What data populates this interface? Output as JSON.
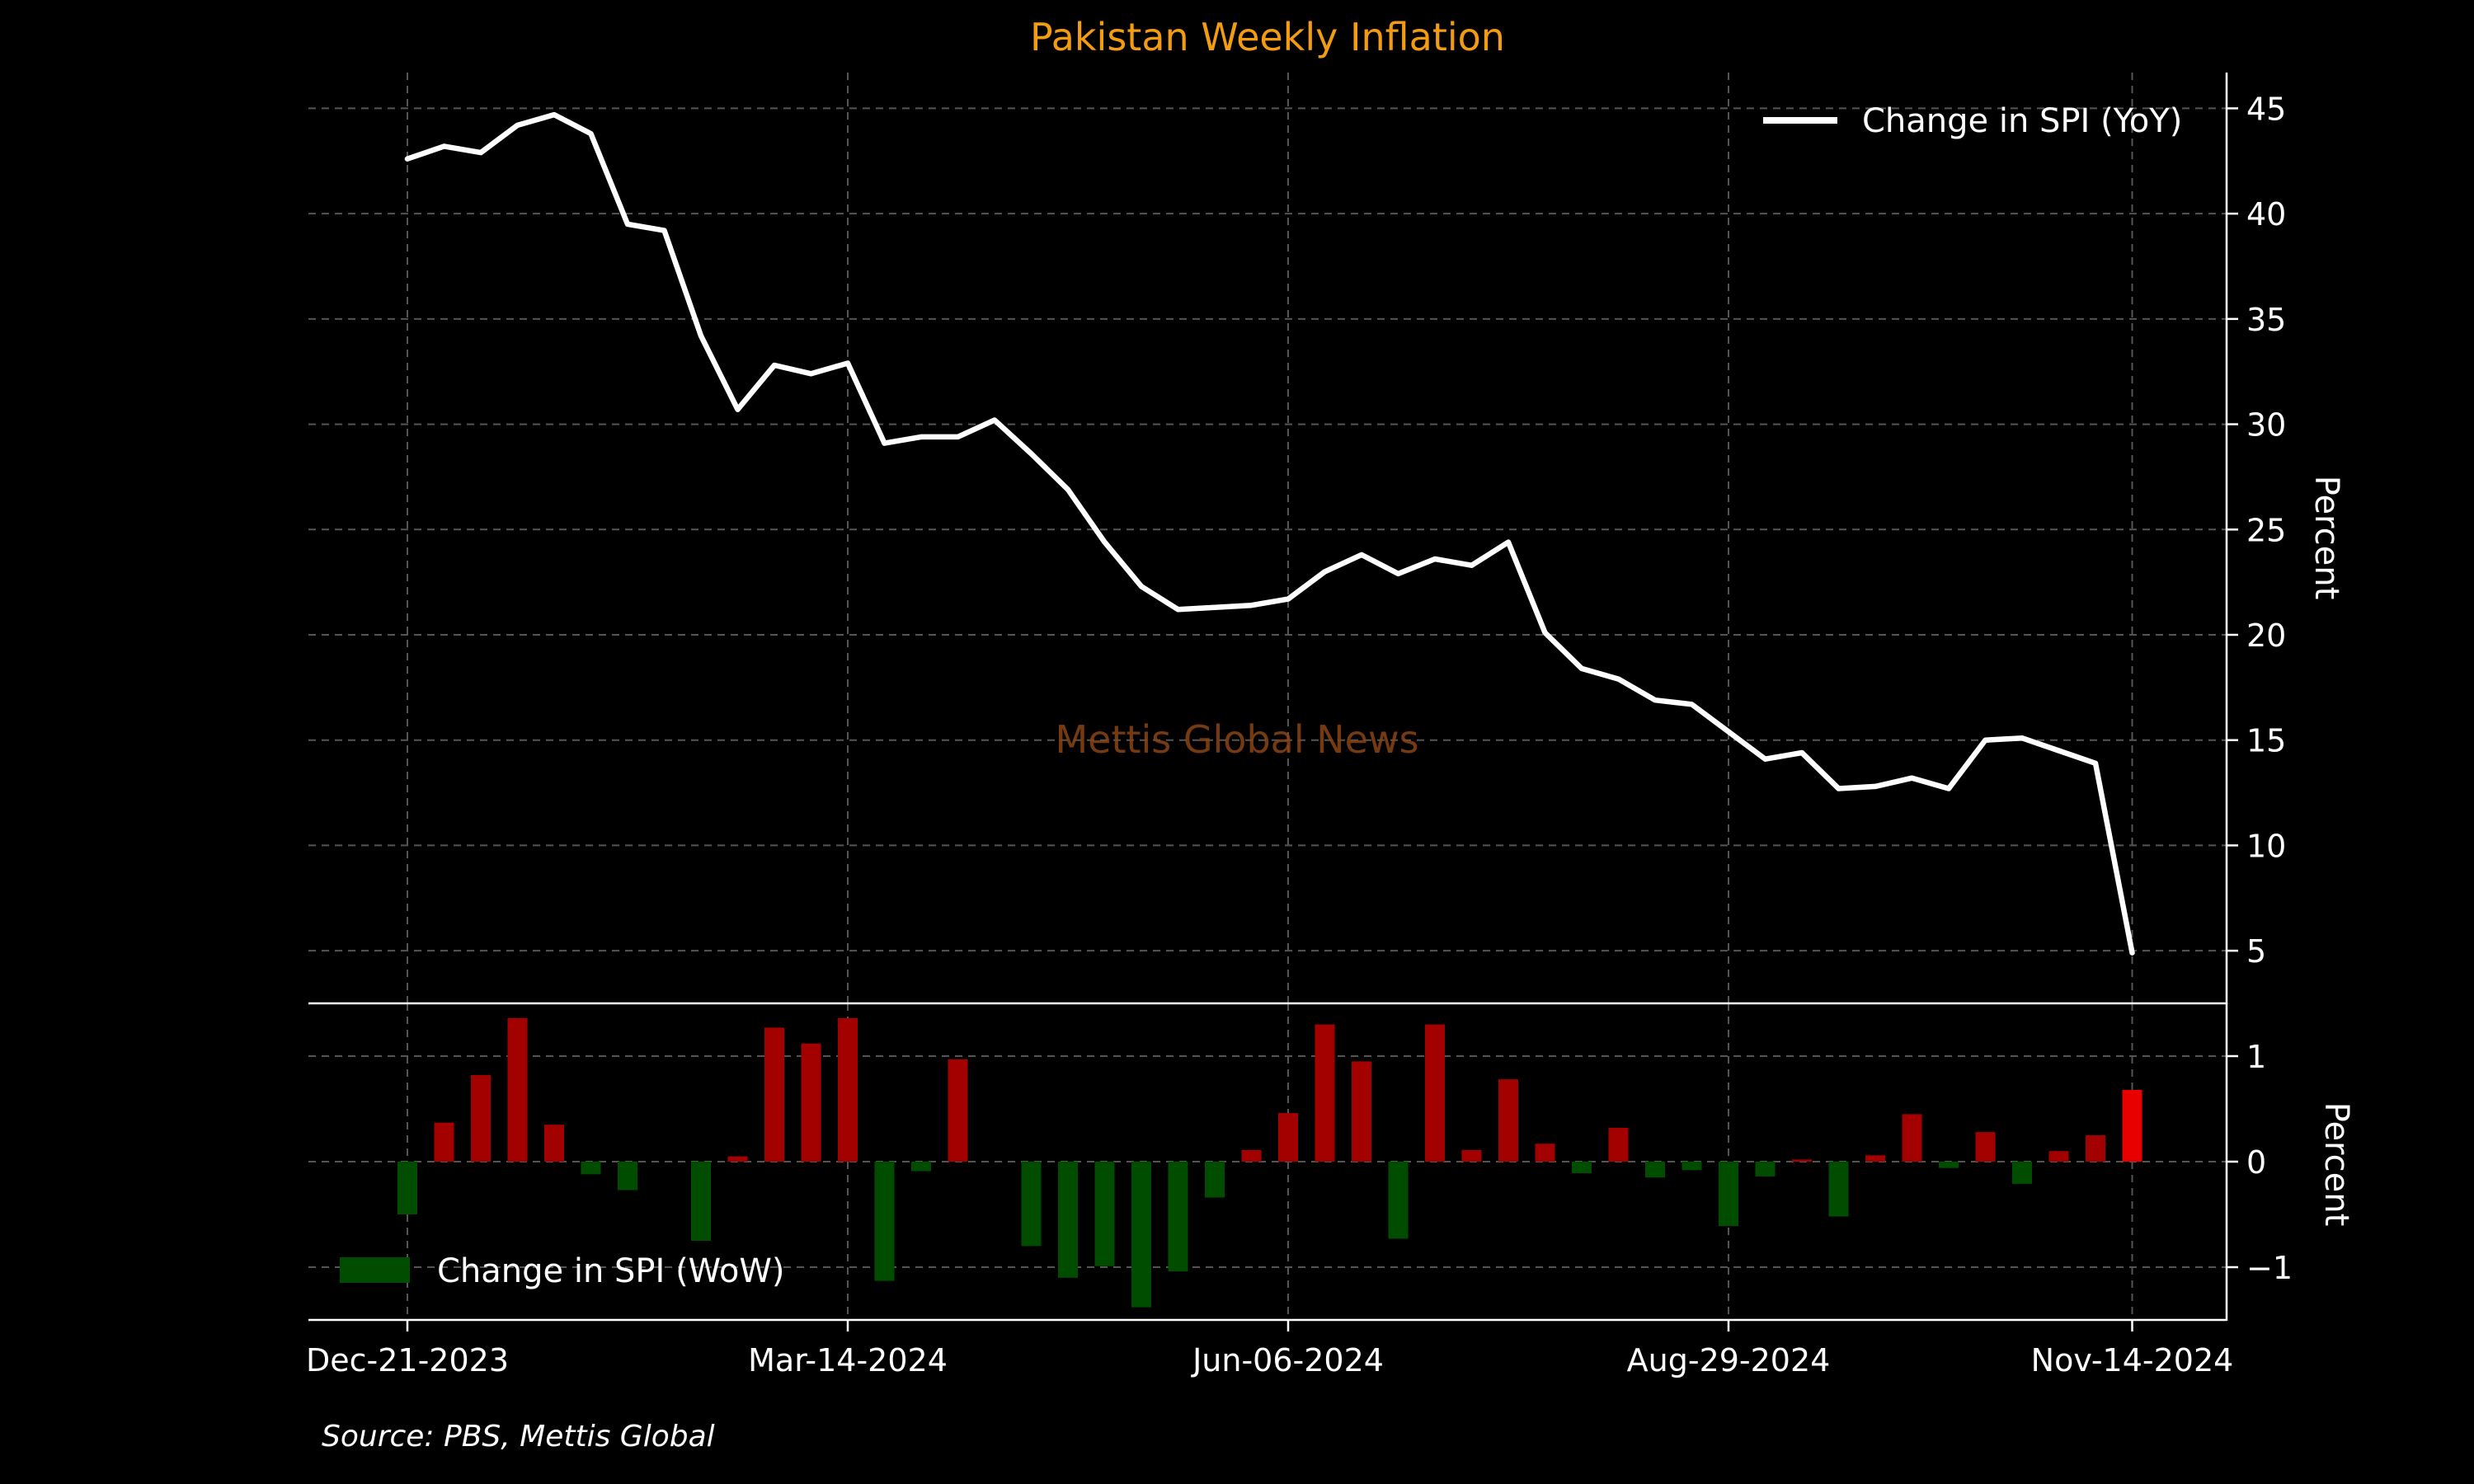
{
  "chart_data": [
    {
      "type": "line",
      "title": "Pakistan Weekly Inflation",
      "ylabel": "Percent",
      "ylim": [
        2.5,
        46.7
      ],
      "yticks": [
        5,
        10,
        15,
        20,
        25,
        30,
        35,
        40,
        45
      ],
      "x_tick_labels": [
        "Dec-21-2023",
        "Mar-14-2024",
        "Jun-06-2024",
        "Aug-29-2024",
        "Nov-14-2024"
      ],
      "x_tick_weeks": [
        0,
        12,
        24,
        36,
        47
      ],
      "grid": true,
      "legend": "top-right",
      "series": [
        {
          "name": "Change in SPI (YoY)",
          "color": "#ffffff",
          "x": [
            "Dec-21-2023",
            "Dec-28-2023",
            "Jan-04-2024",
            "Jan-11-2024",
            "Jan-18-2024",
            "Jan-25-2024",
            "Feb-01-2024",
            "Feb-08-2024",
            "Feb-15-2024",
            "Feb-22-2024",
            "Feb-29-2024",
            "Mar-07-2024",
            "Mar-14-2024",
            "Mar-21-2024",
            "Mar-28-2024",
            "Apr-04-2024",
            "Apr-11-2024",
            "Apr-18-2024",
            "Apr-25-2024",
            "May-02-2024",
            "May-09-2024",
            "May-16-2024",
            "May-23-2024",
            "May-30-2024",
            "Jun-06-2024",
            "Jun-13-2024",
            "Jun-20-2024",
            "Jun-27-2024",
            "Jul-04-2024",
            "Jul-11-2024",
            "Jul-18-2024",
            "Jul-25-2024",
            "Aug-01-2024",
            "Aug-08-2024",
            "Aug-15-2024",
            "Aug-22-2024",
            "Aug-29-2024",
            "Sep-05-2024",
            "Sep-12-2024",
            "Sep-19-2024",
            "Sep-26-2024",
            "Oct-03-2024",
            "Oct-10-2024",
            "Oct-17-2024",
            "Oct-24-2024",
            "Oct-31-2024",
            "Nov-07-2024",
            "Nov-14-2024"
          ],
          "values": [
            42.6,
            43.2,
            42.9,
            44.2,
            44.7,
            43.8,
            39.5,
            39.2,
            34.2,
            30.7,
            32.8,
            32.4,
            32.9,
            29.1,
            29.4,
            29.4,
            30.2,
            28.6,
            26.9,
            24.4,
            22.3,
            21.2,
            21.3,
            21.4,
            21.7,
            23.0,
            23.8,
            22.9,
            23.6,
            23.3,
            24.4,
            20.1,
            18.4,
            17.9,
            16.9,
            16.7,
            15.4,
            14.1,
            14.4,
            12.7,
            12.8,
            13.2,
            12.7,
            15.0,
            15.1,
            14.5,
            13.9,
            4.9
          ]
        }
      ]
    },
    {
      "type": "bar",
      "ylabel": "Percent",
      "ylim": [
        -1.5,
        1.5
      ],
      "yticks": [
        -1,
        0,
        1
      ],
      "grid": true,
      "legend": "bottom-left",
      "positive_color": "#a30000",
      "negative_color": "#004d00",
      "last_bar_color": "#e80000",
      "series": [
        {
          "name": "Change in SPI (WoW)",
          "values": [
            -0.5,
            0.37,
            0.82,
            1.36,
            0.35,
            -0.12,
            -0.27,
            0,
            -0.75,
            0.05,
            1.27,
            1.12,
            1.36,
            -1.13,
            -0.09,
            0.97,
            0,
            -0.8,
            -1.1,
            -0.99,
            -1.38,
            -1.04,
            -0.34,
            0.11,
            0.46,
            1.3,
            0.95,
            -0.73,
            1.3,
            0.11,
            0.78,
            0.17,
            -0.11,
            0.32,
            -0.15,
            -0.08,
            -0.61,
            -0.14,
            0.02,
            -0.52,
            0.06,
            0.45,
            -0.06,
            0.28,
            -0.21,
            0.1,
            0.25,
            0.68
          ]
        }
      ]
    }
  ],
  "annotations": {
    "watermark": "Mettis Global News",
    "source": "Source: PBS, Mettis Global"
  },
  "colors": {
    "background": "#000000",
    "title": "#f39c12",
    "watermark": "#8b4513",
    "text": "#ffffff",
    "grid": "#555555"
  }
}
